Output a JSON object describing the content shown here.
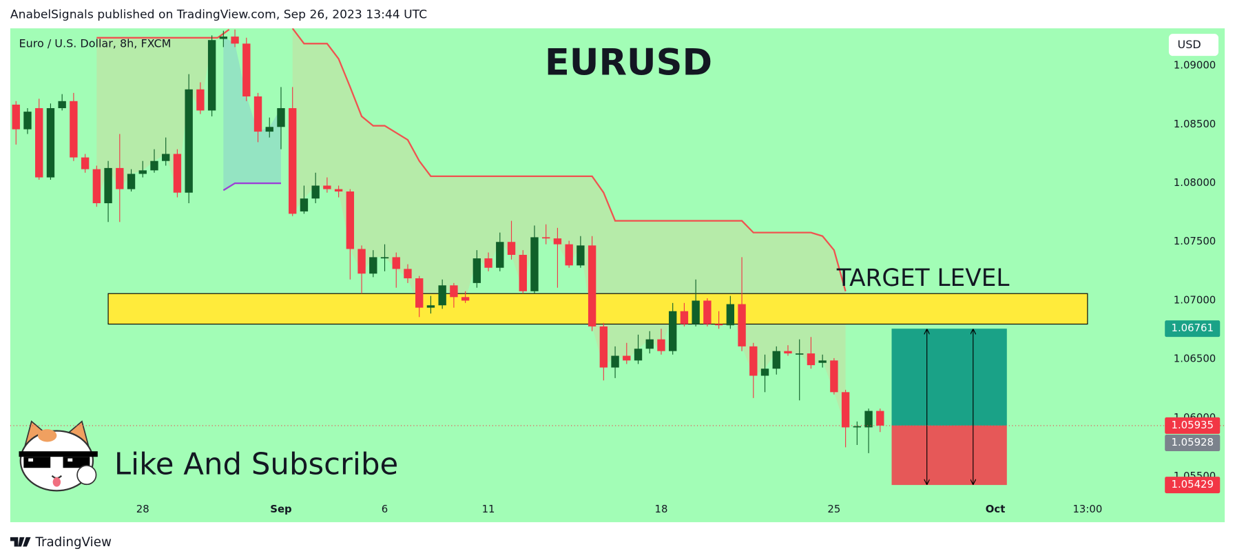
{
  "header": "AnabelSignals published on TradingView.com, Sep 26, 2023 13:44 UTC",
  "footer": "TradingView",
  "chart_data": {
    "type": "candlestick",
    "title": "EURUSD",
    "symbol": "Euro / U.S. Dollar, 8h, FXCM",
    "currency": "USD",
    "annotation": "Like And Subscribe",
    "x": [
      0,
      1,
      2,
      3,
      4,
      5,
      6,
      7,
      8,
      9,
      10,
      11,
      12,
      13,
      14,
      15,
      16,
      17,
      18,
      19,
      20,
      21,
      22,
      23,
      24,
      25,
      26,
      27,
      28,
      29,
      30,
      31,
      32,
      33,
      34,
      35,
      36,
      37,
      38,
      39,
      40,
      41,
      42,
      43,
      44,
      45,
      46,
      47,
      48,
      49,
      50,
      51,
      52,
      53,
      54,
      55,
      56,
      57,
      58,
      59,
      60,
      61,
      62,
      63,
      64,
      65,
      66,
      67,
      68,
      69,
      70,
      71,
      72,
      73,
      74,
      75
    ],
    "open": [
      1.0867,
      1.0846,
      1.0864,
      1.0805,
      1.0864,
      1.087,
      1.0822,
      1.0812,
      1.0783,
      1.0813,
      1.0795,
      1.0808,
      1.0811,
      1.0819,
      1.0825,
      1.0792,
      1.088,
      1.0862,
      1.0923,
      1.0925,
      1.0919,
      1.0874,
      1.0844,
      1.0848,
      1.0864,
      1.0776,
      1.0787,
      1.0798,
      1.0795,
      1.0793,
      1.0744,
      1.0723,
      1.0736,
      1.0737,
      1.0727,
      1.0719,
      1.0694,
      1.0696,
      1.0713,
      1.0703,
      1.0715,
      1.0736,
      1.0728,
      1.075,
      1.0739,
      1.0708,
      1.0754,
      1.0753,
      1.0748,
      1.073,
      1.0747,
      1.0678,
      1.0643,
      1.0653,
      1.0649,
      1.0659,
      1.0667,
      1.0657,
      1.0691,
      1.068,
      1.07,
      1.068,
      1.0679,
      1.0697,
      1.0661,
      1.0636,
      1.0642,
      1.0657,
      1.0655,
      1.0655,
      1.0647,
      1.0649,
      1.0622,
      1.0592,
      1.0592,
      1.0606
    ],
    "high": [
      1.087,
      1.0864,
      1.0872,
      1.0868,
      1.0876,
      1.0877,
      1.0825,
      1.0815,
      1.0819,
      1.0842,
      1.0812,
      1.0819,
      1.0829,
      1.0839,
      1.0829,
      1.0893,
      1.0886,
      1.0926,
      1.093,
      1.0931,
      1.0924,
      1.0877,
      1.0856,
      1.0882,
      1.0882,
      1.0798,
      1.0809,
      1.0805,
      1.0798,
      1.0795,
      1.0747,
      1.0743,
      1.0748,
      1.0741,
      1.0731,
      1.0721,
      1.0704,
      1.0718,
      1.0715,
      1.0708,
      1.0743,
      1.0741,
      1.0758,
      1.0768,
      1.0743,
      1.0764,
      1.0765,
      1.0762,
      1.0751,
      1.0755,
      1.0755,
      1.0681,
      1.0661,
      1.0664,
      1.0671,
      1.0674,
      1.0676,
      1.0698,
      1.0698,
      1.0718,
      1.0702,
      1.0691,
      1.0704,
      1.0737,
      1.0664,
      1.0654,
      1.0661,
      1.0662,
      1.0667,
      1.0669,
      1.0654,
      1.0651,
      1.0624,
      1.0597,
      1.0608,
      1.0608
    ],
    "low": [
      1.0833,
      1.0842,
      1.0803,
      1.0803,
      1.0862,
      1.0819,
      1.0809,
      1.078,
      1.0767,
      1.0767,
      1.0793,
      1.0805,
      1.0809,
      1.0815,
      1.0788,
      1.0783,
      1.0859,
      1.0857,
      1.0916,
      1.0916,
      1.087,
      1.0835,
      1.0839,
      1.0829,
      1.0772,
      1.0774,
      1.0783,
      1.0792,
      1.0788,
      1.0718,
      1.0706,
      1.072,
      1.0725,
      1.0711,
      1.0715,
      1.0686,
      1.0689,
      1.0693,
      1.0694,
      1.0698,
      1.0711,
      1.0725,
      1.0725,
      1.0735,
      1.0706,
      1.0706,
      1.0748,
      1.0711,
      1.0728,
      1.0728,
      1.0674,
      1.0632,
      1.0634,
      1.0646,
      1.0646,
      1.0655,
      1.0654,
      1.0654,
      1.0678,
      1.0678,
      1.0678,
      1.0676,
      1.0676,
      1.0657,
      1.0617,
      1.0622,
      1.0637,
      1.0653,
      1.0615,
      1.0642,
      1.0643,
      1.062,
      1.0575,
      1.0577,
      1.057,
      1.0588
    ],
    "close": [
      1.0846,
      1.0861,
      1.0805,
      1.0864,
      1.087,
      1.0822,
      1.0812,
      1.0783,
      1.0813,
      1.0795,
      1.0808,
      1.0811,
      1.0819,
      1.0825,
      1.0792,
      1.088,
      1.0862,
      1.0922,
      1.0925,
      1.0919,
      1.0874,
      1.0844,
      1.0848,
      1.0864,
      1.0774,
      1.0787,
      1.0798,
      1.0795,
      1.0793,
      1.0744,
      1.0723,
      1.0737,
      1.0737,
      1.0727,
      1.0719,
      1.0694,
      1.0696,
      1.0713,
      1.0703,
      1.07,
      1.0736,
      1.0728,
      1.075,
      1.0739,
      1.0708,
      1.0754,
      1.0753,
      1.0748,
      1.073,
      1.0747,
      1.0678,
      1.0643,
      1.0653,
      1.0649,
      1.0659,
      1.0667,
      1.0657,
      1.0691,
      1.068,
      1.07,
      1.068,
      1.0679,
      1.0697,
      1.0661,
      1.0636,
      1.0642,
      1.0657,
      1.0655,
      1.0655,
      1.0645,
      1.0649,
      1.0622,
      1.0592,
      1.0593,
      1.0606,
      1.05935
    ],
    "up_color": "#10602a",
    "down_color": "#f23645",
    "background": "#a2fdb6",
    "xlim": [
      -0.5,
      99.1
    ],
    "xticks": [
      {
        "value": 11,
        "label": "28"
      },
      {
        "value": 23,
        "label": "Sep"
      },
      {
        "value": 32,
        "label": "6"
      },
      {
        "value": 41,
        "label": "11"
      },
      {
        "value": 56,
        "label": "18"
      },
      {
        "value": 71,
        "label": "25"
      },
      {
        "value": 85,
        "label": "Oct"
      },
      {
        "value": 93,
        "label": "13:00"
      }
    ],
    "ylim": [
      1.0532,
      1.0932
    ],
    "yticks": [
      {
        "value": 1.09,
        "label": "1.09000"
      },
      {
        "value": 1.085,
        "label": "1.08500"
      },
      {
        "value": 1.08,
        "label": "1.08000"
      },
      {
        "value": 1.075,
        "label": "1.07500"
      },
      {
        "value": 1.07,
        "label": "1.07000"
      },
      {
        "value": 1.065,
        "label": "1.06500"
      },
      {
        "value": 1.06,
        "label": "1.06000"
      },
      {
        "value": 1.055,
        "label": "1.05500"
      }
    ],
    "lines": [
      {
        "color": "#f0524f",
        "x": [
          7,
          17.5,
          18.5
        ],
        "values": [
          1.0924,
          1.0924,
          1.0931
        ]
      },
      {
        "color": "#f0524f",
        "x": [
          24,
          25,
          27,
          28,
          29,
          30,
          31,
          32,
          34,
          35,
          36,
          50,
          51,
          52,
          63,
          64,
          69,
          70,
          71,
          72
        ],
        "values": [
          1.0932,
          1.0919,
          1.0919,
          1.0906,
          1.0882,
          1.0857,
          1.0849,
          1.0849,
          1.0837,
          1.0819,
          1.0806,
          1.0806,
          1.0792,
          1.0768,
          1.0768,
          1.0758,
          1.0758,
          1.0755,
          1.0743,
          1.0708
        ]
      },
      {
        "color": "#9c3fd6",
        "x": [
          18,
          19,
          23
        ],
        "values": [
          1.0794,
          1.08,
          1.08
        ]
      }
    ],
    "zone": {
      "label": "TARGET LEVEL",
      "x": [
        8,
        93
      ],
      "values": [
        1.0706,
        1.068
      ],
      "color": "#ffeb3b"
    },
    "position": {
      "x": [
        76,
        86
      ],
      "target": 1.06761,
      "entry": 1.05935,
      "stop": 1.05429,
      "profit_color": "#1aa287",
      "loss_color": "#e65858"
    },
    "bid": 1.05928,
    "bid_color": "#7b828c"
  }
}
